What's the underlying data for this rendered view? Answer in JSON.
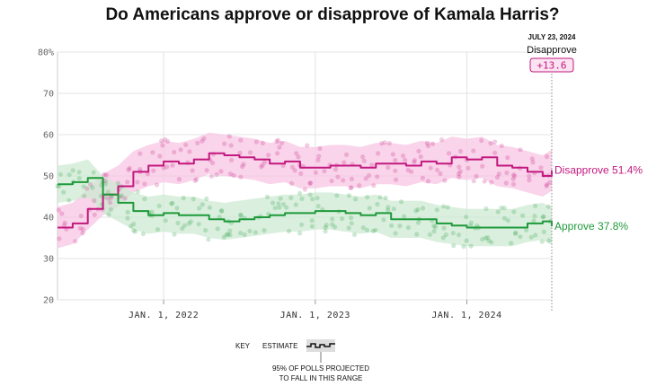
{
  "chart_data": {
    "type": "line",
    "title": "Do Americans approve or disapprove of Kamala Harris?",
    "y_ticks": [
      "80%",
      "70",
      "60",
      "50",
      "40",
      "30",
      "20"
    ],
    "y_tick_values": [
      80,
      70,
      60,
      50,
      40,
      30,
      20
    ],
    "ylim": [
      20,
      80
    ],
    "x_ticks": [
      "JAN. 1, 2022",
      "JAN. 1, 2023",
      "JAN. 1, 2024"
    ],
    "x_tick_values": [
      2022.0,
      2023.0,
      2024.0
    ],
    "xlim": [
      2021.3,
      2024.56
    ],
    "grid": true,
    "callout": {
      "date": "JULY 23, 2024",
      "label": "Disapprove",
      "net": "+13.6"
    },
    "series": [
      {
        "name": "Disapprove",
        "end_label": "Disapprove 51.4%",
        "color": "#c2187f",
        "band_color": "#f7c6e3",
        "band_half_width": 5,
        "x": [
          2021.3,
          2021.4,
          2021.5,
          2021.6,
          2021.7,
          2021.8,
          2021.9,
          2022.0,
          2022.1,
          2022.2,
          2022.3,
          2022.4,
          2022.5,
          2022.6,
          2022.7,
          2022.8,
          2022.9,
          2023.0,
          2023.1,
          2023.2,
          2023.3,
          2023.4,
          2023.5,
          2023.6,
          2023.7,
          2023.8,
          2023.9,
          2024.0,
          2024.1,
          2024.2,
          2024.3,
          2024.4,
          2024.5,
          2024.56
        ],
        "values": [
          37.5,
          38.5,
          42,
          45.5,
          47.5,
          51,
          52.5,
          53.5,
          53,
          54,
          55.5,
          55,
          54.5,
          54,
          53,
          53.5,
          52,
          52,
          52.5,
          52.5,
          52,
          53,
          53,
          52.5,
          53.5,
          53,
          54.5,
          54,
          54.5,
          52.5,
          52,
          51,
          50,
          51.4
        ]
      },
      {
        "name": "Approve",
        "end_label": "Approve 37.8%",
        "color": "#1e9a3a",
        "band_color": "#cde9d3",
        "band_half_width": 4.5,
        "x": [
          2021.3,
          2021.4,
          2021.5,
          2021.6,
          2021.7,
          2021.8,
          2021.9,
          2022.0,
          2022.1,
          2022.2,
          2022.3,
          2022.4,
          2022.5,
          2022.6,
          2022.7,
          2022.8,
          2022.9,
          2023.0,
          2023.1,
          2023.2,
          2023.3,
          2023.4,
          2023.5,
          2023.6,
          2023.7,
          2023.8,
          2023.9,
          2024.0,
          2024.1,
          2024.2,
          2024.3,
          2024.4,
          2024.5,
          2024.56
        ],
        "values": [
          48,
          48.5,
          49.5,
          45.5,
          43.5,
          41.5,
          40.5,
          41,
          40.5,
          40.5,
          39.5,
          39,
          39.5,
          40,
          40.5,
          41,
          41,
          41.5,
          41.5,
          41,
          40.5,
          41,
          39.5,
          39.5,
          39.5,
          38.5,
          38,
          37.5,
          37.5,
          37.5,
          37.5,
          38.5,
          39,
          37.8
        ]
      }
    ]
  },
  "key": {
    "label": "KEY",
    "estimate": "ESTIMATE",
    "range_line1": "95% OF POLLS PROJECTED",
    "range_line2": "TO FALL IN THIS RANGE"
  }
}
